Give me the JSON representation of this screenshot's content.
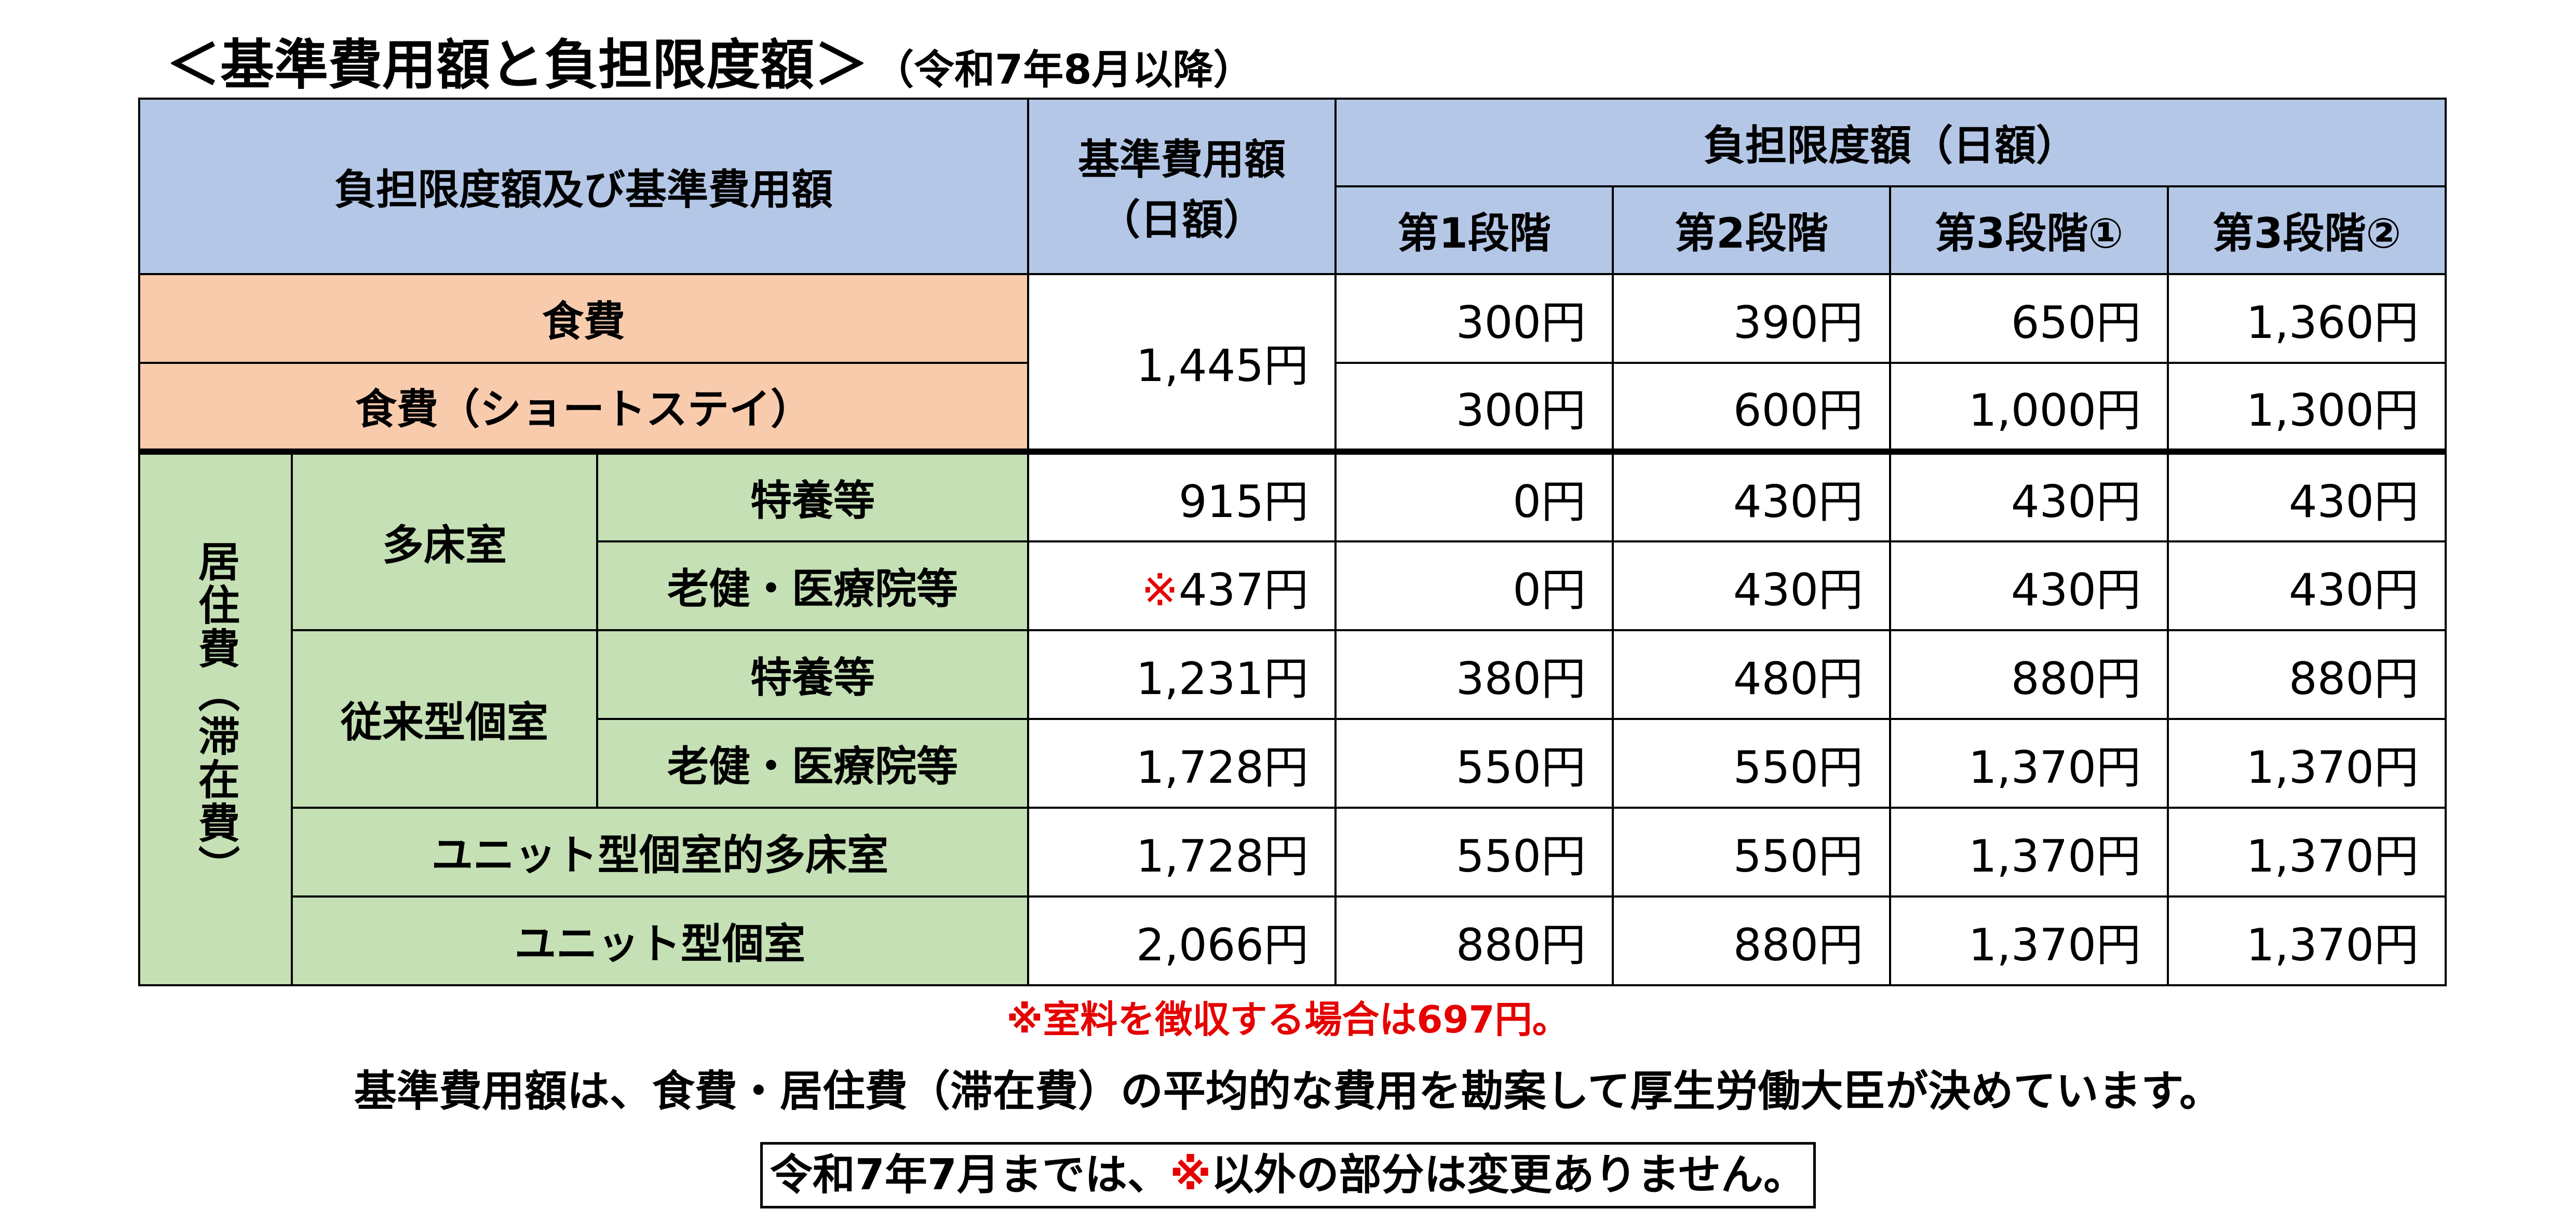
{
  "title": {
    "main": "＜基準費用額と負担限度額＞",
    "sub": "（令和7年8月以降）"
  },
  "table": {
    "header": {
      "corner": "負担限度額及び基準費用額",
      "base_line1": "基準費用額",
      "base_line2": "（日額）",
      "limit": "負担限度額（日額）",
      "stages": [
        "第1段階",
        "第2段階",
        "第3段階①",
        "第3段階②"
      ]
    },
    "food": {
      "base": "1,445円",
      "rows": [
        {
          "label": "食費",
          "values": [
            "300円",
            "390円",
            "650円",
            "1,360円"
          ]
        },
        {
          "label": "食費（ショートステイ）",
          "values": [
            "300円",
            "600円",
            "1,000円",
            "1,300円"
          ]
        }
      ]
    },
    "residence": {
      "label": "居住費（滞在費）",
      "groups": [
        {
          "label": "多床室",
          "rows": [
            {
              "label": "特養等",
              "base": "915円",
              "values": [
                "0円",
                "430円",
                "430円",
                "430円"
              ]
            },
            {
              "label": "老健・医療院等",
              "base_mark": "※",
              "base": "437円",
              "values": [
                "0円",
                "430円",
                "430円",
                "430円"
              ]
            }
          ]
        },
        {
          "label": "従来型個室",
          "rows": [
            {
              "label": "特養等",
              "base": "1,231円",
              "values": [
                "380円",
                "480円",
                "880円",
                "880円"
              ]
            },
            {
              "label": "老健・医療院等",
              "base": "1,728円",
              "values": [
                "550円",
                "550円",
                "1,370円",
                "1,370円"
              ]
            }
          ]
        }
      ],
      "single_rows": [
        {
          "label": "ユニット型個室的多床室",
          "base": "1,728円",
          "values": [
            "550円",
            "550円",
            "1,370円",
            "1,370円"
          ]
        },
        {
          "label": "ユニット型個室",
          "base": "2,066円",
          "values": [
            "880円",
            "880円",
            "1,370円",
            "1,370円"
          ]
        }
      ]
    }
  },
  "notes": {
    "red_note": "※室料を徴収する場合は697円。",
    "description": "基準費用額は、食費・居住費（滞在費）の平均的な費用を勘案して厚生労働大臣が決めています。",
    "box_before": "令和7年7月までは、",
    "box_mark": "※",
    "box_after": "以外の部分は変更ありません。"
  },
  "colors": {
    "header": "#b4c7e7",
    "food": "#f8cbad",
    "residence": "#c5e0b4",
    "accent_red": "#e60000"
  }
}
